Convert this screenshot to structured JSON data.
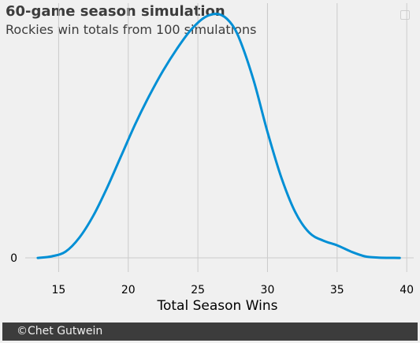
{
  "title": "60-game season simulation",
  "subtitle": "Rockies win totals from 100 simulations",
  "footer": {
    "credit": "©Chet Gutwein"
  },
  "colors": {
    "background": "#f0f0f0",
    "line": "#008fd5",
    "grid": "#cbcbcb",
    "text": "#3c3c3c",
    "footer_bg": "#3c3c3c",
    "footer_text": "#f0f0f0"
  },
  "chart_data": {
    "type": "line",
    "title": "60-game season simulation",
    "subtitle": "Rockies win totals from 100 simulations",
    "xlabel": "Total Season Wins",
    "ylabel": "",
    "xlim": [
      12.6,
      40.5
    ],
    "ylim": [
      -0.0045,
      0.081
    ],
    "xticks": [
      15,
      20,
      25,
      30,
      35,
      40
    ],
    "yticks": [
      0
    ],
    "grid": true,
    "legend": "top-right",
    "series": [
      {
        "values": [
          {
            "x": 13.5,
            "y": 0.0
          },
          {
            "x": 14.5,
            "y": 0.0005
          },
          {
            "x": 15.5,
            "y": 0.002
          },
          {
            "x": 16.5,
            "y": 0.0065
          },
          {
            "x": 17.5,
            "y": 0.0135
          },
          {
            "x": 18.5,
            "y": 0.0225
          },
          {
            "x": 19.5,
            "y": 0.0325
          },
          {
            "x": 20.5,
            "y": 0.0425
          },
          {
            "x": 21.5,
            "y": 0.0515
          },
          {
            "x": 22.5,
            "y": 0.0595
          },
          {
            "x": 23.5,
            "y": 0.0665
          },
          {
            "x": 24.5,
            "y": 0.0725
          },
          {
            "x": 25.5,
            "y": 0.0765
          },
          {
            "x": 26.5,
            "y": 0.0775
          },
          {
            "x": 27.3,
            "y": 0.075
          },
          {
            "x": 28.0,
            "y": 0.0695
          },
          {
            "x": 29.0,
            "y": 0.0565
          },
          {
            "x": 30.0,
            "y": 0.04
          },
          {
            "x": 31.0,
            "y": 0.0255
          },
          {
            "x": 32.0,
            "y": 0.0145
          },
          {
            "x": 33.0,
            "y": 0.008
          },
          {
            "x": 34.0,
            "y": 0.0055
          },
          {
            "x": 35.0,
            "y": 0.004
          },
          {
            "x": 36.0,
            "y": 0.002
          },
          {
            "x": 37.0,
            "y": 0.0005
          },
          {
            "x": 38.0,
            "y": 0.0001
          },
          {
            "x": 39.5,
            "y": 0.0
          }
        ]
      }
    ]
  }
}
